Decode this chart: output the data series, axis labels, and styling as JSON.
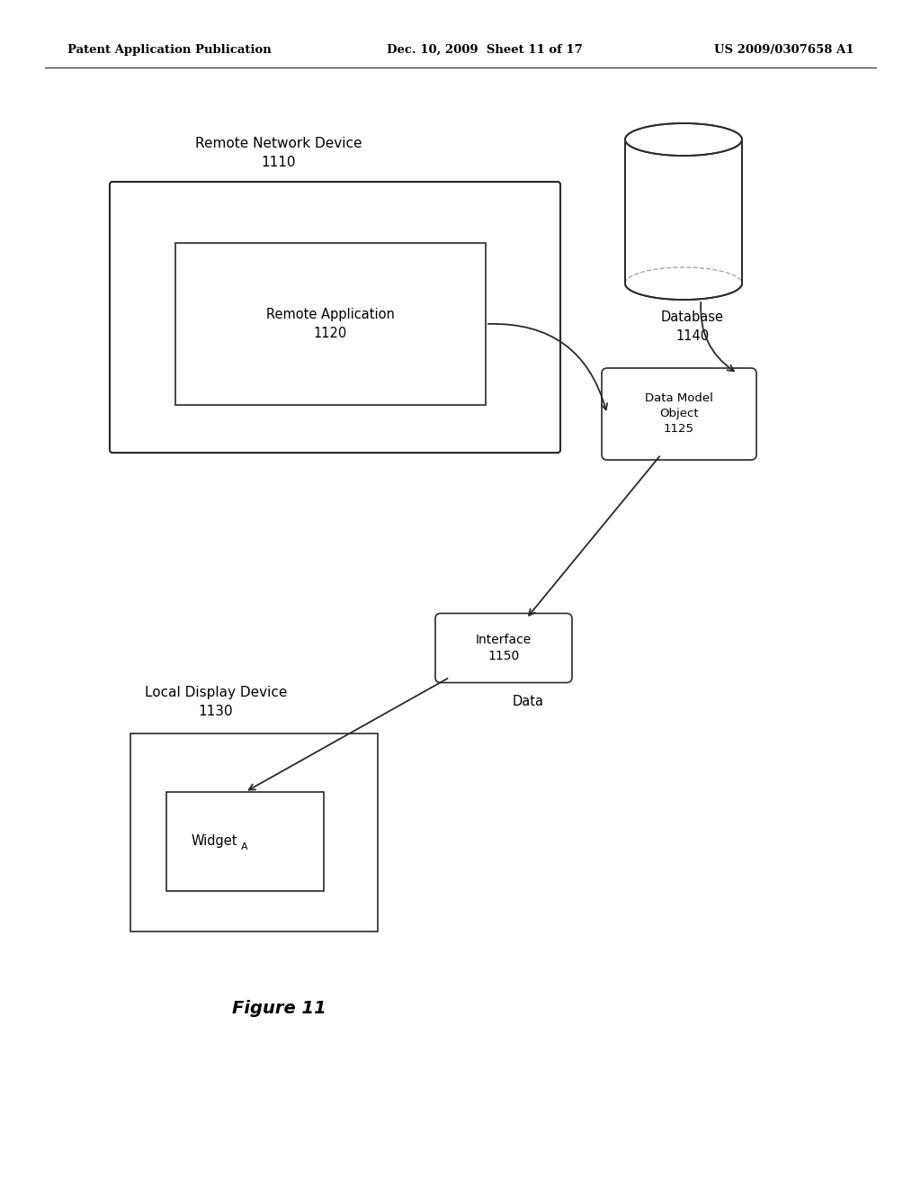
{
  "bg_color": "#ffffff",
  "header_left": "Patent Application Publication",
  "header_mid": "Dec. 10, 2009  Sheet 11 of 17",
  "header_right": "US 2009/0307658 A1",
  "figure_caption": "Figure 11",
  "remote_network_device_label": "Remote Network Device\n1110",
  "remote_app_label": "Remote Application\n1120",
  "database_label": "Database\n1140",
  "data_model_label": "Data Model\nObject\n1125",
  "interface_label": "Interface\n1150",
  "local_display_label": "Local Display Device\n1130",
  "widget_label": "Widget",
  "widget_subscript": "A",
  "data_label": "Data",
  "line_color": "#2a2a2a",
  "text_color": "#000000"
}
